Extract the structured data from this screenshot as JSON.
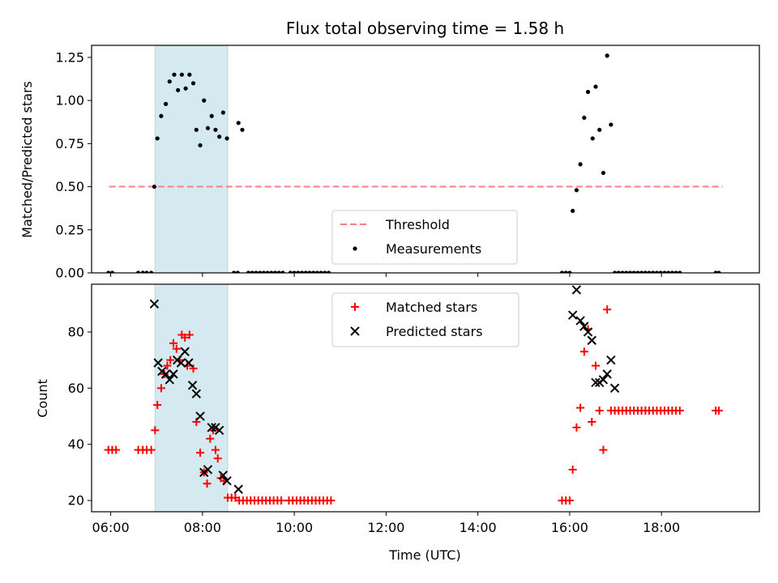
{
  "chart_data": [
    {
      "type": "scatter",
      "title": "Flux total observing time = 1.58 h",
      "xlabel": "",
      "ylabel": "Matched/Predicted stars",
      "xlim": [
        "05:35",
        "20:08"
      ],
      "ylim": [
        0.0,
        1.32
      ],
      "yticks": [
        "0.00",
        "0.25",
        "0.50",
        "0.75",
        "1.00",
        "1.25"
      ],
      "xticks": [
        "06:00",
        "08:00",
        "10:00",
        "12:00",
        "14:00",
        "16:00",
        "18:00"
      ],
      "xtick_labels_visible": false,
      "shaded_interval": [
        "06:58",
        "08:33"
      ],
      "shade_color": "#d4e9f0",
      "legend_position": "lower center",
      "series": [
        {
          "name": "Threshold",
          "kind": "dashed-line",
          "color": "#ff7f7f",
          "points": [
            [
              "05:58",
              0.5
            ],
            [
              "19:20",
              0.5
            ]
          ]
        },
        {
          "name": "Measurements",
          "kind": "dot",
          "color": "#000000",
          "points": [
            [
              "05:57",
              0.0
            ],
            [
              "06:02",
              0.0
            ],
            [
              "06:36",
              0.0
            ],
            [
              "06:42",
              0.0
            ],
            [
              "06:47",
              0.0
            ],
            [
              "06:53",
              0.0
            ],
            [
              "06:57",
              0.5
            ],
            [
              "07:01",
              0.78
            ],
            [
              "07:06",
              0.91
            ],
            [
              "07:12",
              0.98
            ],
            [
              "07:17",
              1.11
            ],
            [
              "07:23",
              1.15
            ],
            [
              "07:28",
              1.06
            ],
            [
              "07:33",
              1.15
            ],
            [
              "07:38",
              1.07
            ],
            [
              "07:43",
              1.15
            ],
            [
              "07:48",
              1.1
            ],
            [
              "07:52",
              0.83
            ],
            [
              "07:57",
              0.74
            ],
            [
              "08:02",
              1.0
            ],
            [
              "08:07",
              0.84
            ],
            [
              "08:12",
              0.91
            ],
            [
              "08:17",
              0.83
            ],
            [
              "08:22",
              0.79
            ],
            [
              "08:27",
              0.93
            ],
            [
              "08:32",
              0.78
            ],
            [
              "08:41",
              0.0
            ],
            [
              "08:46",
              0.0
            ],
            [
              "08:47",
              0.87
            ],
            [
              "08:52",
              0.83
            ],
            [
              "09:00",
              0.0
            ],
            [
              "09:05",
              0.0
            ],
            [
              "09:10",
              0.0
            ],
            [
              "09:15",
              0.0
            ],
            [
              "09:20",
              0.0
            ],
            [
              "09:25",
              0.0
            ],
            [
              "09:30",
              0.0
            ],
            [
              "09:35",
              0.0
            ],
            [
              "09:40",
              0.0
            ],
            [
              "09:45",
              0.0
            ],
            [
              "09:55",
              0.0
            ],
            [
              "10:00",
              0.0
            ],
            [
              "10:05",
              0.0
            ],
            [
              "10:10",
              0.0
            ],
            [
              "10:15",
              0.0
            ],
            [
              "10:20",
              0.0
            ],
            [
              "10:25",
              0.0
            ],
            [
              "10:30",
              0.0
            ],
            [
              "10:35",
              0.0
            ],
            [
              "10:40",
              0.0
            ],
            [
              "10:45",
              0.0
            ],
            [
              "15:50",
              0.0
            ],
            [
              "15:55",
              0.0
            ],
            [
              "16:00",
              0.0
            ],
            [
              "16:04",
              0.36
            ],
            [
              "16:09",
              0.48
            ],
            [
              "16:14",
              0.63
            ],
            [
              "16:19",
              0.9
            ],
            [
              "16:24",
              1.05
            ],
            [
              "16:30",
              0.78
            ],
            [
              "16:34",
              1.08
            ],
            [
              "16:39",
              0.83
            ],
            [
              "16:44",
              0.58
            ],
            [
              "16:49",
              1.26
            ],
            [
              "16:54",
              0.86
            ],
            [
              "16:59",
              0.0
            ],
            [
              "17:04",
              0.0
            ],
            [
              "17:09",
              0.0
            ],
            [
              "17:14",
              0.0
            ],
            [
              "17:19",
              0.0
            ],
            [
              "17:24",
              0.0
            ],
            [
              "17:29",
              0.0
            ],
            [
              "17:34",
              0.0
            ],
            [
              "17:39",
              0.0
            ],
            [
              "17:44",
              0.0
            ],
            [
              "17:49",
              0.0
            ],
            [
              "17:54",
              0.0
            ],
            [
              "17:59",
              0.0
            ],
            [
              "18:04",
              0.0
            ],
            [
              "18:09",
              0.0
            ],
            [
              "18:14",
              0.0
            ],
            [
              "18:19",
              0.0
            ],
            [
              "18:24",
              0.0
            ],
            [
              "19:11",
              0.0
            ],
            [
              "19:15",
              0.0
            ]
          ]
        }
      ]
    },
    {
      "type": "scatter",
      "title": "",
      "xlabel": "Time (UTC)",
      "ylabel": "Count",
      "xlim": [
        "05:35",
        "20:08"
      ],
      "ylim": [
        16,
        97
      ],
      "yticks": [
        "20",
        "40",
        "60",
        "80"
      ],
      "xticks": [
        "06:00",
        "08:00",
        "10:00",
        "12:00",
        "14:00",
        "16:00",
        "18:00"
      ],
      "xtick_labels_visible": true,
      "shaded_interval": [
        "06:58",
        "08:33"
      ],
      "shade_color": "#d4e9f0",
      "legend_position": "upper center",
      "series": [
        {
          "name": "Matched stars",
          "kind": "plus",
          "color": "#ff0000",
          "points": [
            [
              "05:57",
              38
            ],
            [
              "06:02",
              38
            ],
            [
              "06:07",
              38
            ],
            [
              "06:36",
              38
            ],
            [
              "06:42",
              38
            ],
            [
              "06:47",
              38
            ],
            [
              "06:53",
              38
            ],
            [
              "06:58",
              45
            ],
            [
              "07:01",
              54
            ],
            [
              "07:06",
              60
            ],
            [
              "07:10",
              65
            ],
            [
              "07:14",
              68
            ],
            [
              "07:18",
              70
            ],
            [
              "07:22",
              76
            ],
            [
              "07:26",
              74
            ],
            [
              "07:30",
              70
            ],
            [
              "07:33",
              79
            ],
            [
              "07:37",
              78
            ],
            [
              "07:40",
              68
            ],
            [
              "07:43",
              79
            ],
            [
              "07:48",
              67
            ],
            [
              "07:52",
              48
            ],
            [
              "07:57",
              37
            ],
            [
              "08:02",
              30
            ],
            [
              "08:06",
              26
            ],
            [
              "08:10",
              42
            ],
            [
              "08:14",
              45
            ],
            [
              "08:17",
              38
            ],
            [
              "08:20",
              35
            ],
            [
              "08:24",
              28
            ],
            [
              "08:28",
              27
            ],
            [
              "08:33",
              21
            ],
            [
              "08:38",
              21
            ],
            [
              "08:43",
              21
            ],
            [
              "08:48",
              20
            ],
            [
              "08:53",
              20
            ],
            [
              "08:58",
              20
            ],
            [
              "09:03",
              20
            ],
            [
              "09:08",
              20
            ],
            [
              "09:13",
              20
            ],
            [
              "09:18",
              20
            ],
            [
              "09:23",
              20
            ],
            [
              "09:28",
              20
            ],
            [
              "09:33",
              20
            ],
            [
              "09:38",
              20
            ],
            [
              "09:43",
              20
            ],
            [
              "09:53",
              20
            ],
            [
              "09:58",
              20
            ],
            [
              "10:03",
              20
            ],
            [
              "10:08",
              20
            ],
            [
              "10:13",
              20
            ],
            [
              "10:18",
              20
            ],
            [
              "10:23",
              20
            ],
            [
              "10:28",
              20
            ],
            [
              "10:33",
              20
            ],
            [
              "10:38",
              20
            ],
            [
              "10:43",
              20
            ],
            [
              "10:48",
              20
            ],
            [
              "15:50",
              20
            ],
            [
              "15:55",
              20
            ],
            [
              "16:00",
              20
            ],
            [
              "16:04",
              31
            ],
            [
              "16:09",
              46
            ],
            [
              "16:14",
              53
            ],
            [
              "16:19",
              73
            ],
            [
              "16:24",
              81
            ],
            [
              "16:29",
              48
            ],
            [
              "16:34",
              68
            ],
            [
              "16:39",
              52
            ],
            [
              "16:44",
              38
            ],
            [
              "16:49",
              88
            ],
            [
              "16:54",
              52
            ],
            [
              "16:59",
              52
            ],
            [
              "17:04",
              52
            ],
            [
              "17:09",
              52
            ],
            [
              "17:14",
              52
            ],
            [
              "17:19",
              52
            ],
            [
              "17:24",
              52
            ],
            [
              "17:29",
              52
            ],
            [
              "17:34",
              52
            ],
            [
              "17:39",
              52
            ],
            [
              "17:44",
              52
            ],
            [
              "17:49",
              52
            ],
            [
              "17:54",
              52
            ],
            [
              "17:59",
              52
            ],
            [
              "18:04",
              52
            ],
            [
              "18:09",
              52
            ],
            [
              "18:14",
              52
            ],
            [
              "18:19",
              52
            ],
            [
              "18:24",
              52
            ],
            [
              "19:11",
              52
            ],
            [
              "19:15",
              52
            ]
          ]
        },
        {
          "name": "Predicted stars",
          "kind": "x",
          "color": "#000000",
          "points": [
            [
              "06:57",
              90
            ],
            [
              "07:02",
              69
            ],
            [
              "07:07",
              66
            ],
            [
              "07:12",
              65
            ],
            [
              "07:17",
              63
            ],
            [
              "07:22",
              65
            ],
            [
              "07:27",
              70
            ],
            [
              "07:32",
              69
            ],
            [
              "07:37",
              73
            ],
            [
              "07:42",
              69
            ],
            [
              "07:47",
              61
            ],
            [
              "07:52",
              58
            ],
            [
              "07:57",
              50
            ],
            [
              "08:02",
              30
            ],
            [
              "08:07",
              31
            ],
            [
              "08:12",
              46
            ],
            [
              "08:17",
              46
            ],
            [
              "08:22",
              45
            ],
            [
              "08:27",
              29
            ],
            [
              "08:32",
              27
            ],
            [
              "08:47",
              24
            ],
            [
              "16:04",
              86
            ],
            [
              "16:09",
              95
            ],
            [
              "16:14",
              84
            ],
            [
              "16:19",
              82
            ],
            [
              "16:24",
              80
            ],
            [
              "16:29",
              77
            ],
            [
              "16:34",
              62
            ],
            [
              "16:39",
              62
            ],
            [
              "16:44",
              63
            ],
            [
              "16:49",
              65
            ],
            [
              "16:54",
              70
            ],
            [
              "16:59",
              60
            ]
          ]
        }
      ]
    }
  ]
}
